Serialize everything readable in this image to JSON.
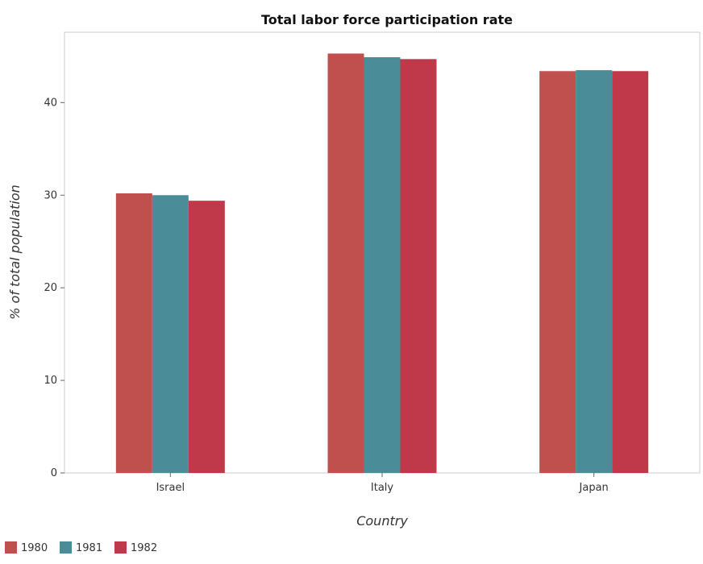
{
  "chart_data": {
    "type": "bar",
    "title": "Total labor force participation rate",
    "xlabel": "Country",
    "ylabel": "% of total population",
    "categories": [
      "Israel",
      "Italy",
      "Japan"
    ],
    "series": [
      {
        "name": "1980",
        "color": "#c0504d",
        "values": [
          30.2,
          45.3,
          43.4
        ]
      },
      {
        "name": "1981",
        "color": "#4a8c97",
        "values": [
          30.0,
          44.9,
          43.5
        ]
      },
      {
        "name": "1982",
        "color": "#c0394a",
        "values": [
          29.4,
          44.7,
          43.4
        ]
      }
    ],
    "yticks": [
      0,
      10,
      20,
      30,
      40
    ],
    "ylim": [
      0,
      47.6
    ],
    "grid": false,
    "legend": "bottom-left"
  }
}
